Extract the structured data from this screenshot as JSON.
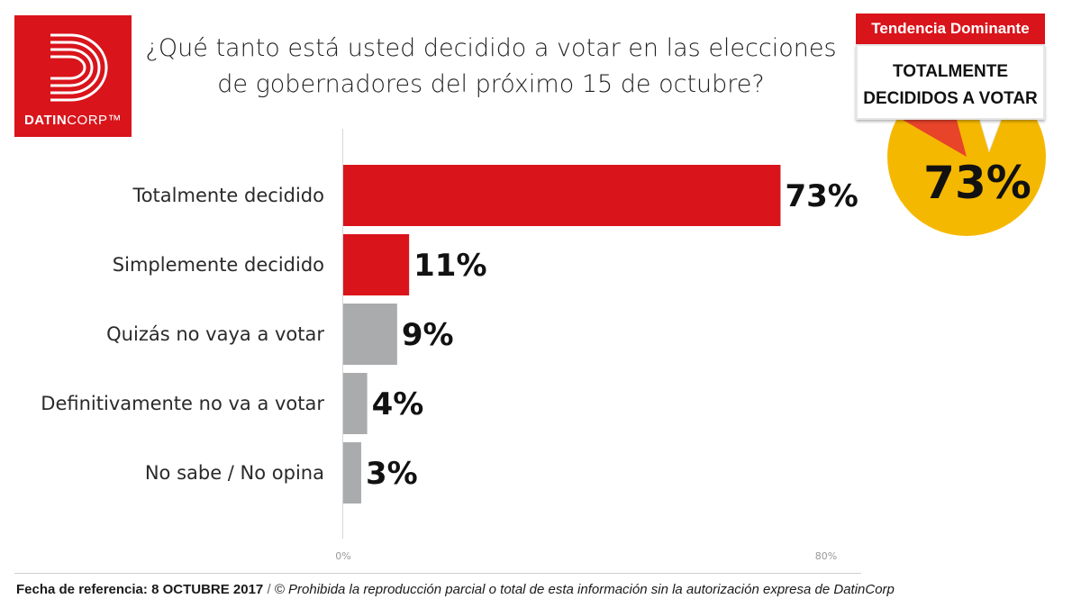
{
  "brand": {
    "name_bold": "DATIN",
    "name_light": "CORP™",
    "color": "#d9141b"
  },
  "title_line1": "¿Qué tanto está usted decidido a votar en las elecciones",
  "title_line2": "de gobernadores del próximo 15 de octubre?",
  "chart_data": {
    "type": "bar",
    "orientation": "horizontal",
    "categories": [
      "Totalmente decidido",
      "Simplemente decidido",
      "Quizás no vaya a votar",
      "Definitivamente no va a votar",
      "No sabe / No opina"
    ],
    "values": [
      73,
      11,
      9,
      4,
      3
    ],
    "value_labels": [
      "73%",
      "11%",
      "9%",
      "4%",
      "3%"
    ],
    "bar_colors": [
      "#d9141b",
      "#d9141b",
      "#a9abac",
      "#a9abac",
      "#a9abac"
    ],
    "xlim": [
      0,
      80
    ],
    "x_tick_labels": [
      "0%",
      "80%"
    ],
    "grid": false
  },
  "badge": {
    "header": "Tendencia Dominante",
    "line1": "TOTALMENTE",
    "line2": "DECIDIDOS A VOTAR",
    "value": "73%",
    "pie_colors": [
      "#f5b800",
      "#e8442a"
    ]
  },
  "footer": {
    "reference": "Fecha de referencia:  8 OCTUBRE 2017",
    "separator": " / ",
    "note": "© Prohibida la reproducción parcial o total de esta información sin la autorización expresa de DatinCorp"
  }
}
